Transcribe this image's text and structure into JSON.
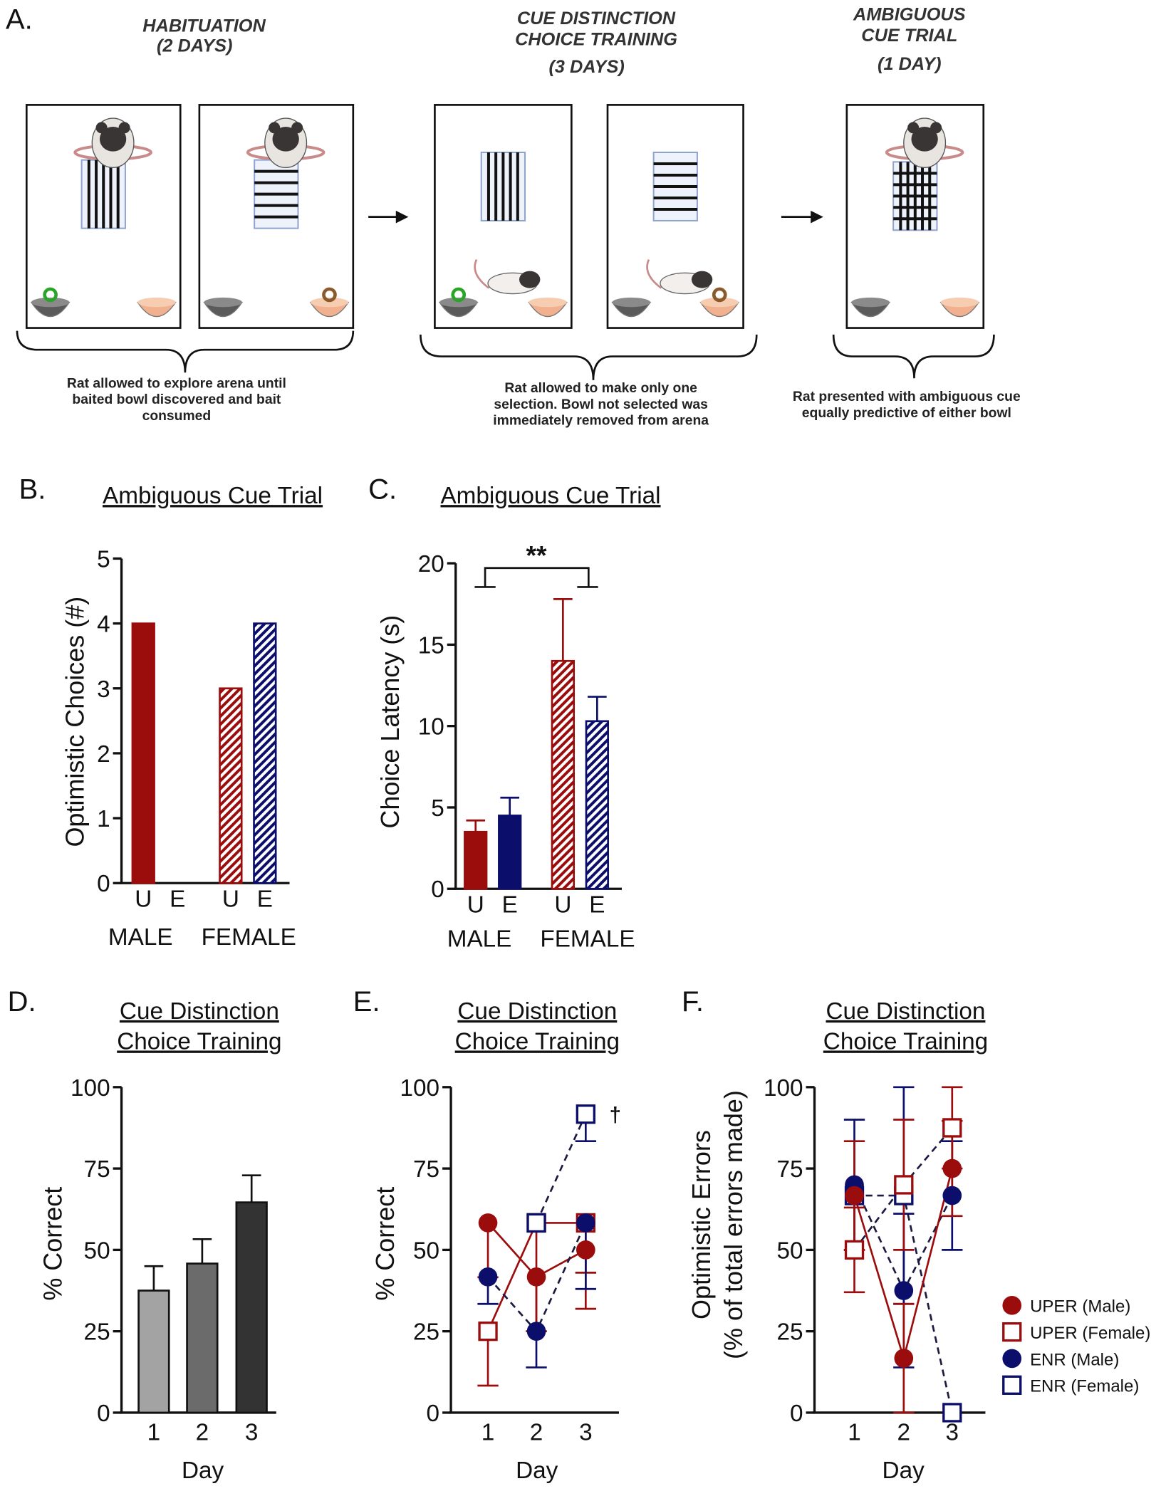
{
  "panel_a": {
    "label": "A.",
    "stages": [
      {
        "title_lines": [
          "HABITUATION",
          "(2 DAYS)"
        ],
        "caption_lines": [
          "Rat allowed to explore arena until",
          "baited bowl discovered and bait",
          "consumed"
        ]
      },
      {
        "title_lines": [
          "CUE DISTINCTION",
          "CHOICE TRAINING",
          "(3 DAYS)"
        ],
        "caption_lines": [
          "Rat allowed to make only one",
          "selection. Bowl not selected was",
          "immediately removed from arena"
        ]
      },
      {
        "title_lines": [
          "AMBIGUOUS",
          "CUE TRIAL",
          "(1 DAY)"
        ],
        "caption_lines": [
          "Rat presented with ambiguous cue",
          "equally predictive of either bowl"
        ]
      }
    ]
  },
  "colors": {
    "red": "#9b0d0d",
    "navy": "#0b0f6b",
    "light_gray": "#a3a3a3",
    "mid_gray": "#6b6b6b",
    "dark_gray": "#333333"
  },
  "chart_data": [
    {
      "panel": "B.",
      "type": "bar",
      "title": "Ambiguous Cue Trial",
      "ylabel": "Optimistic Choices (#)",
      "xlabel": "",
      "ylim": [
        0,
        5
      ],
      "yticks": [
        0,
        1,
        2,
        3,
        4,
        5
      ],
      "categories": [
        "U",
        "E",
        "U",
        "E"
      ],
      "groups": [
        "MALE",
        "FEMALE"
      ],
      "values": [
        4,
        0,
        3,
        4
      ],
      "fills": [
        "solid-red",
        "solid-navy",
        "hatched-red",
        "hatched-navy"
      ]
    },
    {
      "panel": "C.",
      "type": "bar",
      "title": "Ambiguous Cue Trial",
      "ylabel": "Choice Latency (s)",
      "xlabel": "",
      "ylim": [
        0,
        20
      ],
      "yticks": [
        0,
        5,
        10,
        15,
        20
      ],
      "categories": [
        "U",
        "E",
        "U",
        "E"
      ],
      "groups": [
        "MALE",
        "FEMALE"
      ],
      "values": [
        3.5,
        4.5,
        14.0,
        10.3
      ],
      "sem": [
        0.7,
        1.1,
        3.8,
        1.5
      ],
      "fills": [
        "solid-red",
        "solid-navy",
        "hatched-red",
        "hatched-navy"
      ],
      "annotation": "**"
    },
    {
      "panel": "D.",
      "type": "bar",
      "title": "Cue Distinction Choice Training",
      "title_lines": [
        "Cue Distinction",
        "Choice Training"
      ],
      "ylabel": "% Correct",
      "xlabel": "Day",
      "ylim": [
        0,
        100
      ],
      "yticks": [
        0,
        25,
        50,
        75,
        100
      ],
      "categories": [
        "1",
        "2",
        "3"
      ],
      "values": [
        37.5,
        45.8,
        64.6
      ],
      "sem": [
        7.5,
        7.5,
        8.3
      ],
      "fills": [
        "light_gray",
        "mid_gray",
        "dark_gray"
      ]
    },
    {
      "panel": "E.",
      "type": "line",
      "title": "Cue Distinction Choice Training",
      "title_lines": [
        "Cue Distinction",
        "Choice Training"
      ],
      "ylabel": "% Correct",
      "xlabel": "Day",
      "ylim": [
        0,
        100
      ],
      "yticks": [
        0,
        25,
        50,
        75,
        100
      ],
      "x": [
        "1",
        "2",
        "3"
      ],
      "error_direction": "down",
      "annotation": "†",
      "series": [
        {
          "name": "UPER (Male)",
          "marker": "circle",
          "color": "red",
          "dash": false,
          "values": [
            58.3,
            41.7,
            50.0
          ],
          "sem": [
            16.7,
            16.7,
            18.1
          ]
        },
        {
          "name": "UPER (Female)",
          "marker": "square",
          "color": "red",
          "dash": false,
          "values": [
            25.0,
            58.3,
            58.3
          ],
          "sem": [
            16.7,
            33.3,
            15.3
          ]
        },
        {
          "name": "ENR (Male)",
          "marker": "circle",
          "color": "navy",
          "dash": true,
          "values": [
            41.7,
            25.0,
            58.3
          ],
          "sem": [
            8.3,
            11.1,
            20.3
          ]
        },
        {
          "name": "ENR (Female)",
          "marker": "square",
          "color": "navy",
          "dash": true,
          "values": [
            null,
            58.3,
            91.7
          ],
          "sem": [
            null,
            0,
            8.3
          ]
        }
      ]
    },
    {
      "panel": "F.",
      "type": "line",
      "title": "Cue Distinction Choice Training",
      "title_lines": [
        "Cue Distinction",
        "Choice Training"
      ],
      "ylabel": "Optimistic Errors (% of total errors made)",
      "ylabel_lines": [
        "Optimistic Errors",
        "(% of total errors made)"
      ],
      "xlabel": "Day",
      "ylim": [
        0,
        100
      ],
      "yticks": [
        0,
        25,
        50,
        75,
        100
      ],
      "x": [
        "1",
        "2",
        "3"
      ],
      "error_direction": "both",
      "legend": "right",
      "series": [
        {
          "name": "ENR (Female)",
          "marker": "square",
          "color": "navy",
          "dash": true,
          "values": [
            66.7,
            66.7,
            0
          ],
          "sem": [
            0,
            33.3,
            0
          ]
        },
        {
          "name": "ENR (Male)",
          "marker": "circle",
          "color": "navy",
          "dash": true,
          "values": [
            70.0,
            37.5,
            66.7
          ],
          "sem": [
            20.0,
            23.6,
            16.7
          ]
        },
        {
          "name": "UPER (Female)",
          "marker": "square",
          "color": "red",
          "dash": true,
          "values": [
            50.0,
            70.0,
            87.5
          ],
          "sem": [
            13.0,
            20.0,
            12.5
          ]
        },
        {
          "name": "UPER (Male)",
          "marker": "circle",
          "color": "red",
          "dash": false,
          "values": [
            66.7,
            16.7,
            75.0
          ],
          "sem": [
            16.7,
            16.7,
            14.6
          ]
        }
      ],
      "legend_entries": [
        {
          "name": "UPER (Male)",
          "marker": "circle",
          "color": "red"
        },
        {
          "name": "UPER (Female)",
          "marker": "square",
          "color": "red"
        },
        {
          "name": "ENR (Male)",
          "marker": "circle",
          "color": "navy"
        },
        {
          "name": "ENR (Female)",
          "marker": "square",
          "color": "navy"
        }
      ]
    }
  ]
}
